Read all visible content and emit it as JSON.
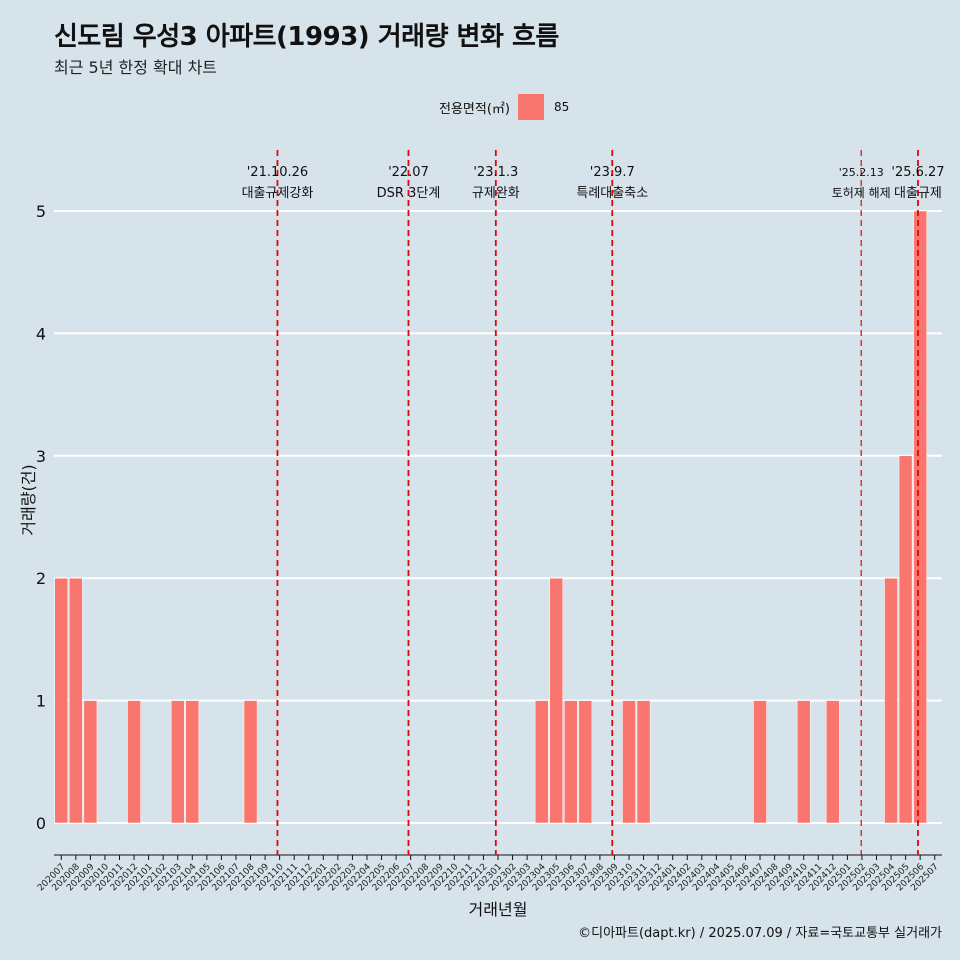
{
  "chart_data": {
    "type": "bar",
    "title": "신도림 우성3 아파트(1993) 거래량 변화 흐름",
    "subtitle": "최근 5년 한정 확대 차트",
    "xlabel": "거래년월",
    "ylabel": "거래량(건)",
    "ylim": [
      0,
      5
    ],
    "yticks": [
      "0",
      "1",
      "2",
      "3",
      "4",
      "5"
    ],
    "grid": true,
    "legend": {
      "title": "전용면적(㎡)",
      "placement": "top",
      "entries": [
        "85"
      ]
    },
    "colors": {
      "bar": "#f8766d",
      "event_line": "#e8000b",
      "background": "#d6e3ea",
      "grid": "#ffffff"
    },
    "categories": [
      "202007",
      "202008",
      "202009",
      "202010",
      "202011",
      "202012",
      "202101",
      "202102",
      "202103",
      "202104",
      "202105",
      "202106",
      "202107",
      "202108",
      "202109",
      "202110",
      "202111",
      "202112",
      "202201",
      "202202",
      "202203",
      "202204",
      "202205",
      "202206",
      "202207",
      "202208",
      "202209",
      "202210",
      "202211",
      "202212",
      "202301",
      "202302",
      "202303",
      "202304",
      "202305",
      "202306",
      "202307",
      "202308",
      "202309",
      "202310",
      "202311",
      "202312",
      "202401",
      "202402",
      "202403",
      "202404",
      "202405",
      "202406",
      "202407",
      "202408",
      "202409",
      "202410",
      "202411",
      "202412",
      "202501",
      "202502",
      "202503",
      "202504",
      "202505",
      "202506",
      "202507"
    ],
    "series": [
      {
        "name": "85",
        "values": [
          2,
          2,
          1,
          0,
          0,
          1,
          0,
          0,
          1,
          1,
          0,
          0,
          0,
          1,
          0,
          0,
          0,
          0,
          0,
          0,
          0,
          0,
          0,
          0,
          0,
          0,
          0,
          0,
          0,
          0,
          0,
          0,
          0,
          1,
          2,
          1,
          1,
          0,
          0,
          1,
          1,
          0,
          0,
          0,
          0,
          0,
          0,
          0,
          1,
          0,
          0,
          1,
          0,
          1,
          0,
          0,
          0,
          2,
          3,
          5,
          0
        ]
      }
    ],
    "events": [
      {
        "date": "'21.10.26",
        "label": "대출규제강화",
        "pos": 15.35
      },
      {
        "date": "'22.07",
        "label": "DSR 3단계",
        "pos": 24.35
      },
      {
        "date": "'23.1.3",
        "label": "규제완화",
        "pos": 30.35
      },
      {
        "date": "'23.9.7",
        "label": "특례대출축소",
        "pos": 38.35
      },
      {
        "date": "'25.2.13",
        "label": "토허제 해제",
        "pos": 55.45
      },
      {
        "date": "'25.6.27",
        "label": "대출규제",
        "pos": 59.35
      }
    ],
    "caption": "©디아파트(dapt.kr) / 2025.07.09 / 자료=국토교통부 실거래가"
  }
}
